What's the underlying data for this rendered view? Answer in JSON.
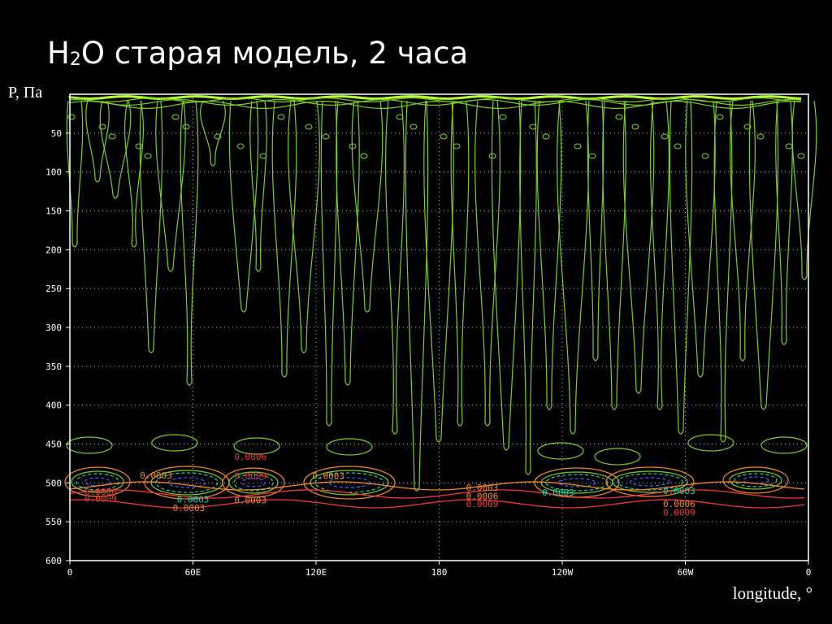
{
  "title": {
    "main_a": "H",
    "sub": "2",
    "main_b": "O старая модель, 2 часа"
  },
  "y_axis_title": "P, Па",
  "x_axis_title": "longitude, °",
  "colors": {
    "background": "#000000",
    "frame": "#ffffff",
    "grid": "#b8b8b8",
    "contour_green": "#7ccc2a",
    "contour_bright": "#b7ff3a",
    "contour_cyan": "#13d8a8",
    "contour_blue": "#2f6cff",
    "contour_orange": "#f08a2a",
    "contour_red": "#f03a3a"
  },
  "chart_data": {
    "type": "contour",
    "x_ticks": [
      "0",
      "60E",
      "120E",
      "180",
      "120W",
      "60W",
      "0"
    ],
    "y_ticks": [
      "50",
      "100",
      "150",
      "200",
      "250",
      "300",
      "350",
      "400",
      "450",
      "500",
      "550",
      "600"
    ],
    "ylim": [
      600,
      0
    ],
    "grid": true,
    "contour_labels": [
      {
        "text": "0.0006",
        "lon": 15,
        "p": 511,
        "color": "red"
      },
      {
        "text": "0.0009",
        "lon": 15,
        "p": 520,
        "color": "red"
      },
      {
        "text": "0.0003",
        "lon": 42,
        "p": 490,
        "color": "orange"
      },
      {
        "text": "0.0003",
        "lon": 60,
        "p": 521,
        "color": "cyan"
      },
      {
        "text": "0.0003",
        "lon": 58,
        "p": 532,
        "color": "orange"
      },
      {
        "text": "0.0006",
        "lon": 88,
        "p": 466,
        "color": "red"
      },
      {
        "text": "0.0009",
        "lon": 88,
        "p": 491,
        "color": "red"
      },
      {
        "text": "0.0003",
        "lon": 88,
        "p": 522,
        "color": "orange"
      },
      {
        "text": "0.0003",
        "lon": 126,
        "p": 491,
        "color": "orange"
      },
      {
        "text": "0.0003",
        "lon": 201,
        "p": 506,
        "color": "orange"
      },
      {
        "text": "0.0006",
        "lon": 201,
        "p": 517,
        "color": "orange"
      },
      {
        "text": "0.0009",
        "lon": 201,
        "p": 527,
        "color": "red"
      },
      {
        "text": "0.0003",
        "lon": 238,
        "p": 512,
        "color": "cyan"
      },
      {
        "text": "0.0003",
        "lon": 297,
        "p": 510,
        "color": "cyan"
      },
      {
        "text": "0.0006",
        "lon": 297,
        "p": 527,
        "color": "orange"
      },
      {
        "text": "0.0009",
        "lon": 297,
        "p": 538,
        "color": "red"
      }
    ]
  }
}
